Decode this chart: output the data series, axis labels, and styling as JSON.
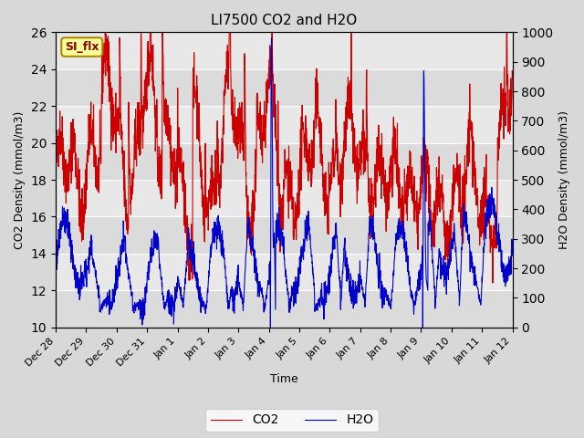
{
  "title": "LI7500 CO2 and H2O",
  "xlabel": "Time",
  "ylabel_left": "CO2 Density (mmol/m3)",
  "ylabel_right": "H2O Density (mmol/m3)",
  "ylim_left": [
    10,
    26
  ],
  "ylim_right": [
    0,
    1000
  ],
  "yticks_left": [
    10,
    12,
    14,
    16,
    18,
    20,
    22,
    24,
    26
  ],
  "yticks_right": [
    0,
    100,
    200,
    300,
    400,
    500,
    600,
    700,
    800,
    900,
    1000
  ],
  "label_box_text": "SI_flx",
  "label_box_facecolor": "#ffff99",
  "label_box_edgecolor": "#aa8800",
  "label_text_color": "#880000",
  "co2_color": "#cc0000",
  "h2o_color": "#0000cc",
  "legend_co2": "CO2",
  "legend_h2o": "H2O",
  "fig_facecolor": "#d8d8d8",
  "axes_facecolor": "#e8e8e8",
  "grid_color": "#c8c8c8",
  "line_width": 0.8,
  "xtick_labels": [
    "Dec 28",
    "Dec 29",
    "Dec 30",
    "Dec 31",
    "Jan 1",
    "Jan 2",
    "Jan 3",
    "Jan 4",
    "Jan 5",
    "Jan 6",
    "Jan 7",
    "Jan 8",
    "Jan 9",
    "Jan 10",
    "Jan 11",
    "Jan 12"
  ],
  "title_fontsize": 11,
  "label_fontsize": 9,
  "tick_fontsize": 8
}
